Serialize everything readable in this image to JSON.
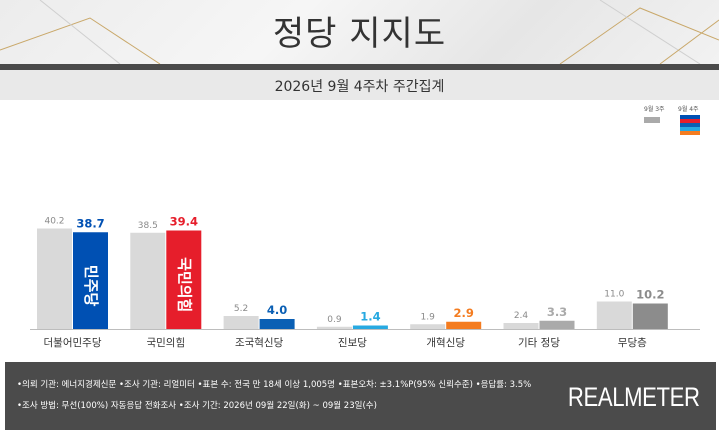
{
  "header": {
    "title": "정당 지지도",
    "subtitle": "2026년 9월 4주차 주간집계"
  },
  "legend": {
    "prev_label": "9월 3주",
    "curr_label": "9월 4주"
  },
  "colors": {
    "prev_bar": "#d9d9d9",
    "prev_value_text": "#8a8a8a",
    "party_1": "#0050b3",
    "party_2": "#e61e2b",
    "party_3": "#0a5fb4",
    "party_4": "#27a9e1",
    "party_5": "#f47c20",
    "party_6": "#aaaaaa",
    "party_7": "#8c8c8c"
  },
  "chart_data": {
    "type": "bar",
    "categories": [
      "더불어민주당",
      "국민의힘",
      "조국혁신당",
      "진보당",
      "개혁신당",
      "기타 정당",
      "무당층"
    ],
    "series": [
      {
        "name": "9월 3주",
        "values": [
          40.2,
          38.5,
          5.2,
          0.9,
          1.9,
          2.4,
          11.0
        ]
      },
      {
        "name": "9월 4주",
        "values": [
          38.7,
          39.4,
          4.0,
          1.4,
          2.9,
          3.3,
          10.2
        ]
      }
    ],
    "value_labels_prev": [
      "40.2",
      "38.5",
      "5.2",
      "0.9",
      "1.9",
      "2.4",
      "11.0"
    ],
    "value_labels_curr": [
      "38.7",
      "39.4",
      "4.0",
      "1.4",
      "2.9",
      "3.3",
      "10.2"
    ],
    "bar_logos": [
      "민주당",
      "국민의힘",
      "",
      "",
      "",
      "",
      ""
    ],
    "title": "정당 지지도",
    "xlabel": "",
    "ylabel": "",
    "ylim": [
      0,
      45
    ],
    "grid": false,
    "legend_position": "top-right"
  },
  "footer": {
    "line1": "•의뢰 기관: 에너지경제신문  •조사 기관: 리얼미터  •표본 수: 전국 만 18세 이상 1,005명  •표본오차: ±3.1%P(95% 신뢰수준)  •응답률: 3.5%",
    "line2": "•조사 방법: 무선(100%) 자동응답 전화조사  •조사 기간: 2026년 09월 22일(화) ~ 09월 23일(수)",
    "brand": "REALMETER"
  }
}
